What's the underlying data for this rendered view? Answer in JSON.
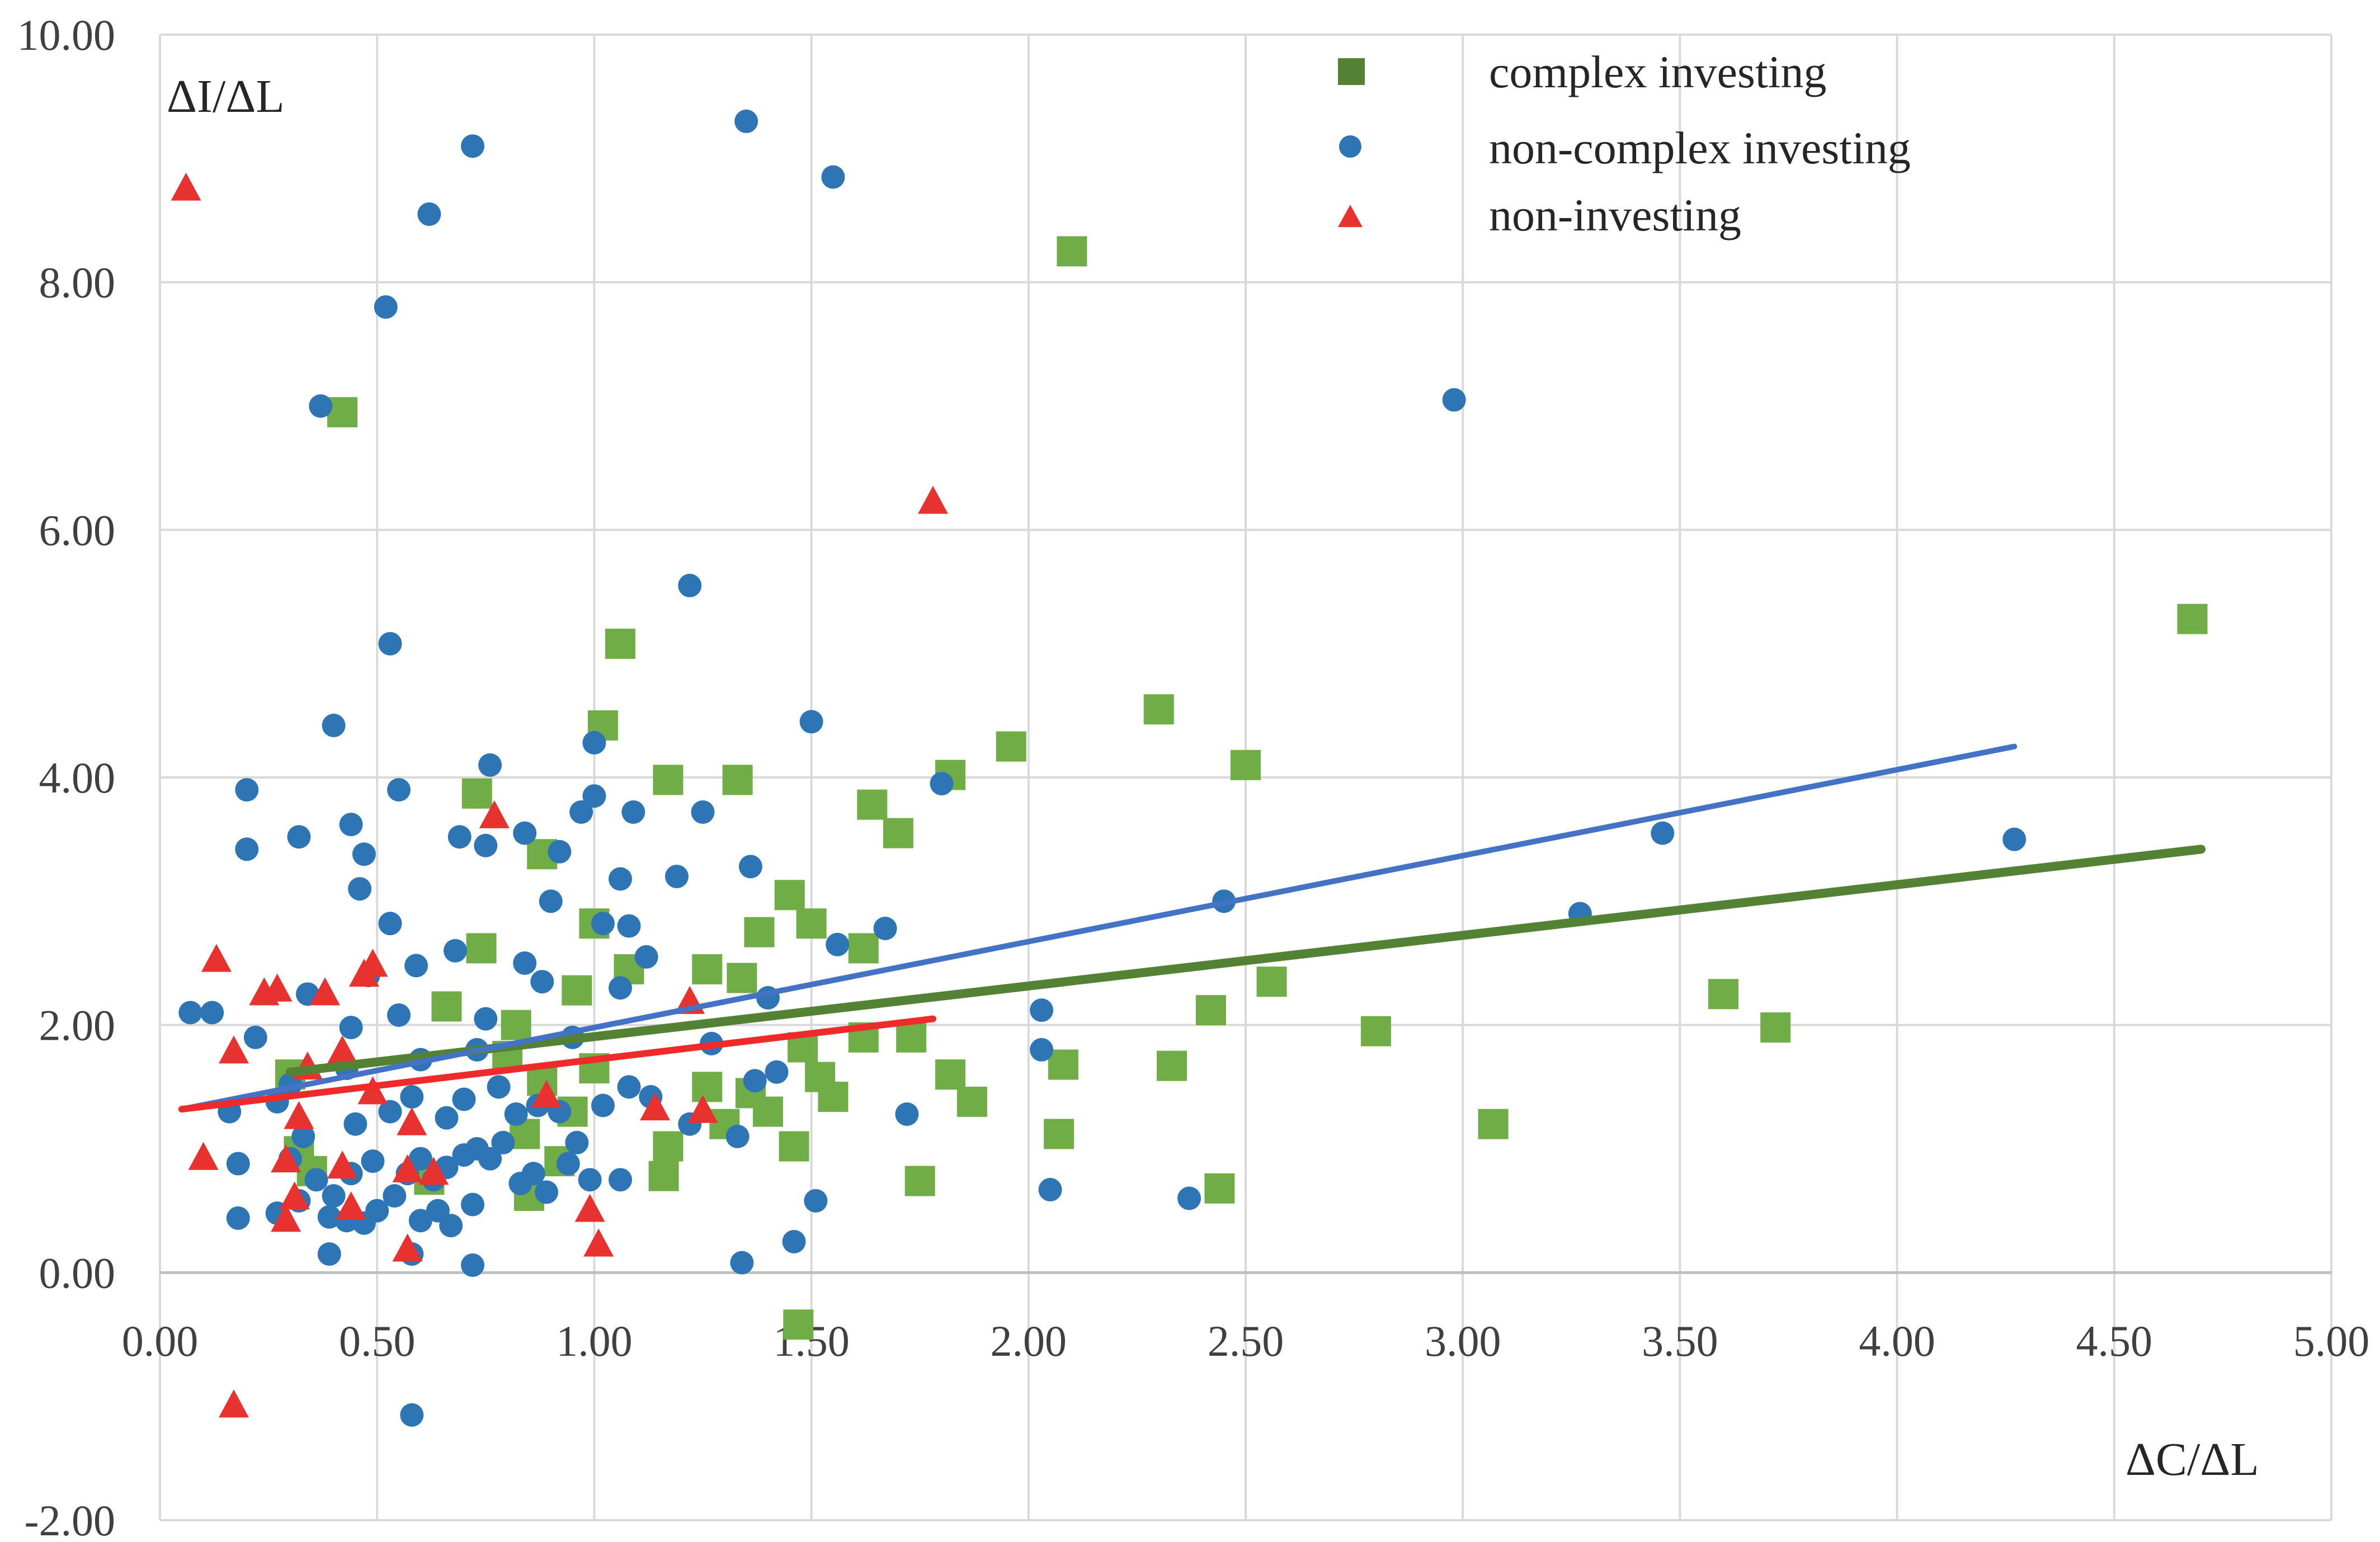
{
  "chart_data": {
    "type": "scatter",
    "xlabel": "ΔC/ΔL",
    "ylabel": "ΔI/ΔL",
    "xlim": [
      0,
      5
    ],
    "ylim": [
      -2,
      10
    ],
    "x_ticks": [
      "0.00",
      "0.50",
      "1.00",
      "1.50",
      "2.00",
      "2.50",
      "3.00",
      "3.50",
      "4.00",
      "4.50",
      "5.00"
    ],
    "y_ticks": [
      "-2.00",
      "0.00",
      "2.00",
      "4.00",
      "6.00",
      "8.00",
      "10.00"
    ],
    "grid": true,
    "legend_position": "top-right",
    "series": [
      {
        "name": "complex investing",
        "marker": "square",
        "color": "#70ad47",
        "trend_color": "#548235",
        "trendline": [
          [
            0.3,
            1.62
          ],
          [
            4.7,
            3.42
          ]
        ],
        "points": [
          [
            0.42,
            6.95
          ],
          [
            0.73,
            3.87
          ],
          [
            0.74,
            2.62
          ],
          [
            0.88,
            3.38
          ],
          [
            1.06,
            5.08
          ],
          [
            1.02,
            4.42
          ],
          [
            1.17,
            3.98
          ],
          [
            1.33,
            3.98
          ],
          [
            1.0,
            2.82
          ],
          [
            1.08,
            2.45
          ],
          [
            1.26,
            2.45
          ],
          [
            1.34,
            2.38
          ],
          [
            1.38,
            2.75
          ],
          [
            1.45,
            3.05
          ],
          [
            1.5,
            2.82
          ],
          [
            1.62,
            2.62
          ],
          [
            1.64,
            3.78
          ],
          [
            1.7,
            3.55
          ],
          [
            1.82,
            4.02
          ],
          [
            1.96,
            4.25
          ],
          [
            2.1,
            8.25
          ],
          [
            2.3,
            4.55
          ],
          [
            2.5,
            4.1
          ],
          [
            2.56,
            2.35
          ],
          [
            2.42,
            2.12
          ],
          [
            2.33,
            1.67
          ],
          [
            2.08,
            1.68
          ],
          [
            2.07,
            1.12
          ],
          [
            2.44,
            0.68
          ],
          [
            1.82,
            1.6
          ],
          [
            1.87,
            1.38
          ],
          [
            1.73,
            1.9
          ],
          [
            1.75,
            0.74
          ],
          [
            1.62,
            1.9
          ],
          [
            1.55,
            1.42
          ],
          [
            1.52,
            1.58
          ],
          [
            1.48,
            1.82
          ],
          [
            1.46,
            1.02
          ],
          [
            1.47,
            -0.42
          ],
          [
            1.4,
            1.3
          ],
          [
            1.36,
            1.45
          ],
          [
            1.3,
            1.2
          ],
          [
            1.26,
            1.5
          ],
          [
            1.17,
            1.02
          ],
          [
            1.16,
            0.78
          ],
          [
            1.0,
            1.65
          ],
          [
            0.95,
            1.3
          ],
          [
            0.88,
            1.55
          ],
          [
            0.84,
            1.12
          ],
          [
            0.82,
            2.0
          ],
          [
            0.8,
            1.75
          ],
          [
            0.85,
            0.62
          ],
          [
            0.92,
            0.9
          ],
          [
            0.96,
            2.28
          ],
          [
            0.66,
            2.15
          ],
          [
            0.62,
            0.75
          ],
          [
            0.35,
            0.82
          ],
          [
            0.32,
            0.98
          ],
          [
            0.3,
            1.6
          ],
          [
            2.8,
            1.95
          ],
          [
            3.07,
            1.2
          ],
          [
            3.6,
            2.25
          ],
          [
            3.72,
            1.98
          ],
          [
            4.68,
            5.28
          ]
        ]
      },
      {
        "name": "non-complex investing",
        "marker": "circle",
        "color": "#2e75b6",
        "trend_color": "#4472c4",
        "trendline": [
          [
            0.05,
            1.32
          ],
          [
            4.27,
            4.25
          ]
        ],
        "points": [
          [
            0.72,
            9.1
          ],
          [
            1.35,
            9.3
          ],
          [
            1.55,
            8.85
          ],
          [
            0.62,
            8.55
          ],
          [
            0.52,
            7.8
          ],
          [
            0.37,
            7.0
          ],
          [
            2.98,
            7.05
          ],
          [
            1.22,
            5.55
          ],
          [
            0.53,
            5.08
          ],
          [
            1.5,
            4.45
          ],
          [
            0.4,
            4.42
          ],
          [
            1.0,
            4.28
          ],
          [
            0.76,
            4.1
          ],
          [
            0.2,
            3.9
          ],
          [
            0.55,
            3.9
          ],
          [
            1.0,
            3.85
          ],
          [
            0.97,
            3.72
          ],
          [
            1.09,
            3.72
          ],
          [
            1.25,
            3.72
          ],
          [
            0.44,
            3.62
          ],
          [
            0.32,
            3.52
          ],
          [
            0.69,
            3.52
          ],
          [
            0.84,
            3.55
          ],
          [
            0.2,
            3.42
          ],
          [
            0.47,
            3.38
          ],
          [
            0.75,
            3.45
          ],
          [
            0.92,
            3.4
          ],
          [
            1.06,
            3.18
          ],
          [
            1.19,
            3.2
          ],
          [
            1.36,
            3.28
          ],
          [
            0.46,
            3.1
          ],
          [
            0.9,
            3.0
          ],
          [
            0.53,
            2.82
          ],
          [
            1.02,
            2.82
          ],
          [
            1.08,
            2.8
          ],
          [
            1.8,
            3.95
          ],
          [
            3.46,
            3.55
          ],
          [
            4.27,
            3.5
          ],
          [
            2.45,
            3.0
          ],
          [
            3.27,
            2.9
          ],
          [
            1.67,
            2.78
          ],
          [
            1.56,
            2.65
          ],
          [
            0.68,
            2.6
          ],
          [
            1.12,
            2.55
          ],
          [
            0.84,
            2.5
          ],
          [
            0.59,
            2.48
          ],
          [
            0.48,
            2.4
          ],
          [
            0.88,
            2.35
          ],
          [
            1.06,
            2.3
          ],
          [
            0.34,
            2.25
          ],
          [
            0.55,
            2.08
          ],
          [
            0.07,
            2.1
          ],
          [
            0.12,
            2.1
          ],
          [
            0.22,
            1.9
          ],
          [
            0.44,
            1.98
          ],
          [
            0.75,
            2.05
          ],
          [
            1.4,
            2.22
          ],
          [
            2.03,
            2.12
          ],
          [
            2.03,
            1.8
          ],
          [
            1.27,
            1.85
          ],
          [
            0.95,
            1.9
          ],
          [
            0.73,
            1.8
          ],
          [
            0.6,
            1.72
          ],
          [
            0.43,
            1.65
          ],
          [
            0.3,
            1.52
          ],
          [
            0.16,
            1.3
          ],
          [
            0.27,
            1.38
          ],
          [
            0.33,
            1.1
          ],
          [
            0.45,
            1.2
          ],
          [
            0.53,
            1.3
          ],
          [
            0.58,
            1.42
          ],
          [
            0.66,
            1.25
          ],
          [
            0.7,
            1.4
          ],
          [
            0.78,
            1.5
          ],
          [
            0.82,
            1.28
          ],
          [
            0.87,
            1.35
          ],
          [
            0.92,
            1.3
          ],
          [
            0.96,
            1.05
          ],
          [
            1.02,
            1.35
          ],
          [
            1.08,
            1.5
          ],
          [
            1.13,
            1.42
          ],
          [
            1.22,
            1.2
          ],
          [
            1.33,
            1.1
          ],
          [
            1.37,
            1.55
          ],
          [
            1.42,
            1.62
          ],
          [
            1.72,
            1.28
          ],
          [
            0.18,
            0.88
          ],
          [
            0.3,
            0.92
          ],
          [
            0.36,
            0.75
          ],
          [
            0.4,
            0.62
          ],
          [
            0.44,
            0.8
          ],
          [
            0.49,
            0.9
          ],
          [
            0.54,
            0.62
          ],
          [
            0.57,
            0.8
          ],
          [
            0.6,
            0.92
          ],
          [
            0.63,
            0.75
          ],
          [
            0.66,
            0.85
          ],
          [
            0.7,
            0.95
          ],
          [
            0.73,
            1.0
          ],
          [
            0.76,
            0.92
          ],
          [
            0.79,
            1.05
          ],
          [
            0.83,
            0.72
          ],
          [
            0.86,
            0.8
          ],
          [
            0.89,
            0.65
          ],
          [
            0.94,
            0.88
          ],
          [
            0.99,
            0.75
          ],
          [
            1.06,
            0.75
          ],
          [
            0.18,
            0.44
          ],
          [
            0.27,
            0.48
          ],
          [
            0.32,
            0.58
          ],
          [
            0.39,
            0.45
          ],
          [
            0.43,
            0.42
          ],
          [
            0.47,
            0.4
          ],
          [
            0.5,
            0.5
          ],
          [
            0.6,
            0.42
          ],
          [
            0.64,
            0.5
          ],
          [
            0.67,
            0.38
          ],
          [
            0.72,
            0.55
          ],
          [
            0.39,
            0.15
          ],
          [
            0.58,
            0.15
          ],
          [
            0.72,
            0.06
          ],
          [
            1.34,
            0.08
          ],
          [
            1.46,
            0.25
          ],
          [
            1.51,
            0.58
          ],
          [
            2.05,
            0.67
          ],
          [
            2.37,
            0.6
          ],
          [
            0.58,
            -1.15
          ]
        ]
      },
      {
        "name": "non-investing",
        "marker": "triangle",
        "color": "#e8322f",
        "trend_color": "#ee2b2b",
        "trendline": [
          [
            0.05,
            1.32
          ],
          [
            1.78,
            2.05
          ]
        ],
        "points": [
          [
            0.06,
            8.75
          ],
          [
            1.78,
            6.22
          ],
          [
            0.77,
            3.68
          ],
          [
            0.13,
            2.52
          ],
          [
            0.24,
            2.25
          ],
          [
            0.27,
            2.28
          ],
          [
            0.38,
            2.25
          ],
          [
            0.47,
            2.4
          ],
          [
            0.49,
            2.48
          ],
          [
            1.22,
            2.18
          ],
          [
            0.17,
            1.78
          ],
          [
            0.42,
            1.78
          ],
          [
            0.34,
            1.65
          ],
          [
            0.49,
            1.45
          ],
          [
            0.89,
            1.42
          ],
          [
            1.14,
            1.32
          ],
          [
            1.25,
            1.3
          ],
          [
            0.32,
            1.25
          ],
          [
            0.58,
            1.2
          ],
          [
            0.1,
            0.92
          ],
          [
            0.29,
            0.9
          ],
          [
            0.42,
            0.85
          ],
          [
            0.57,
            0.82
          ],
          [
            0.63,
            0.8
          ],
          [
            0.31,
            0.6
          ],
          [
            0.44,
            0.52
          ],
          [
            0.99,
            0.5
          ],
          [
            0.29,
            0.42
          ],
          [
            0.57,
            0.18
          ],
          [
            1.01,
            0.22
          ],
          [
            0.17,
            -1.08
          ]
        ]
      }
    ]
  },
  "legend": {
    "items": [
      {
        "label": "complex investing"
      },
      {
        "label": "non-complex investing"
      },
      {
        "label": "non-investing"
      }
    ]
  }
}
